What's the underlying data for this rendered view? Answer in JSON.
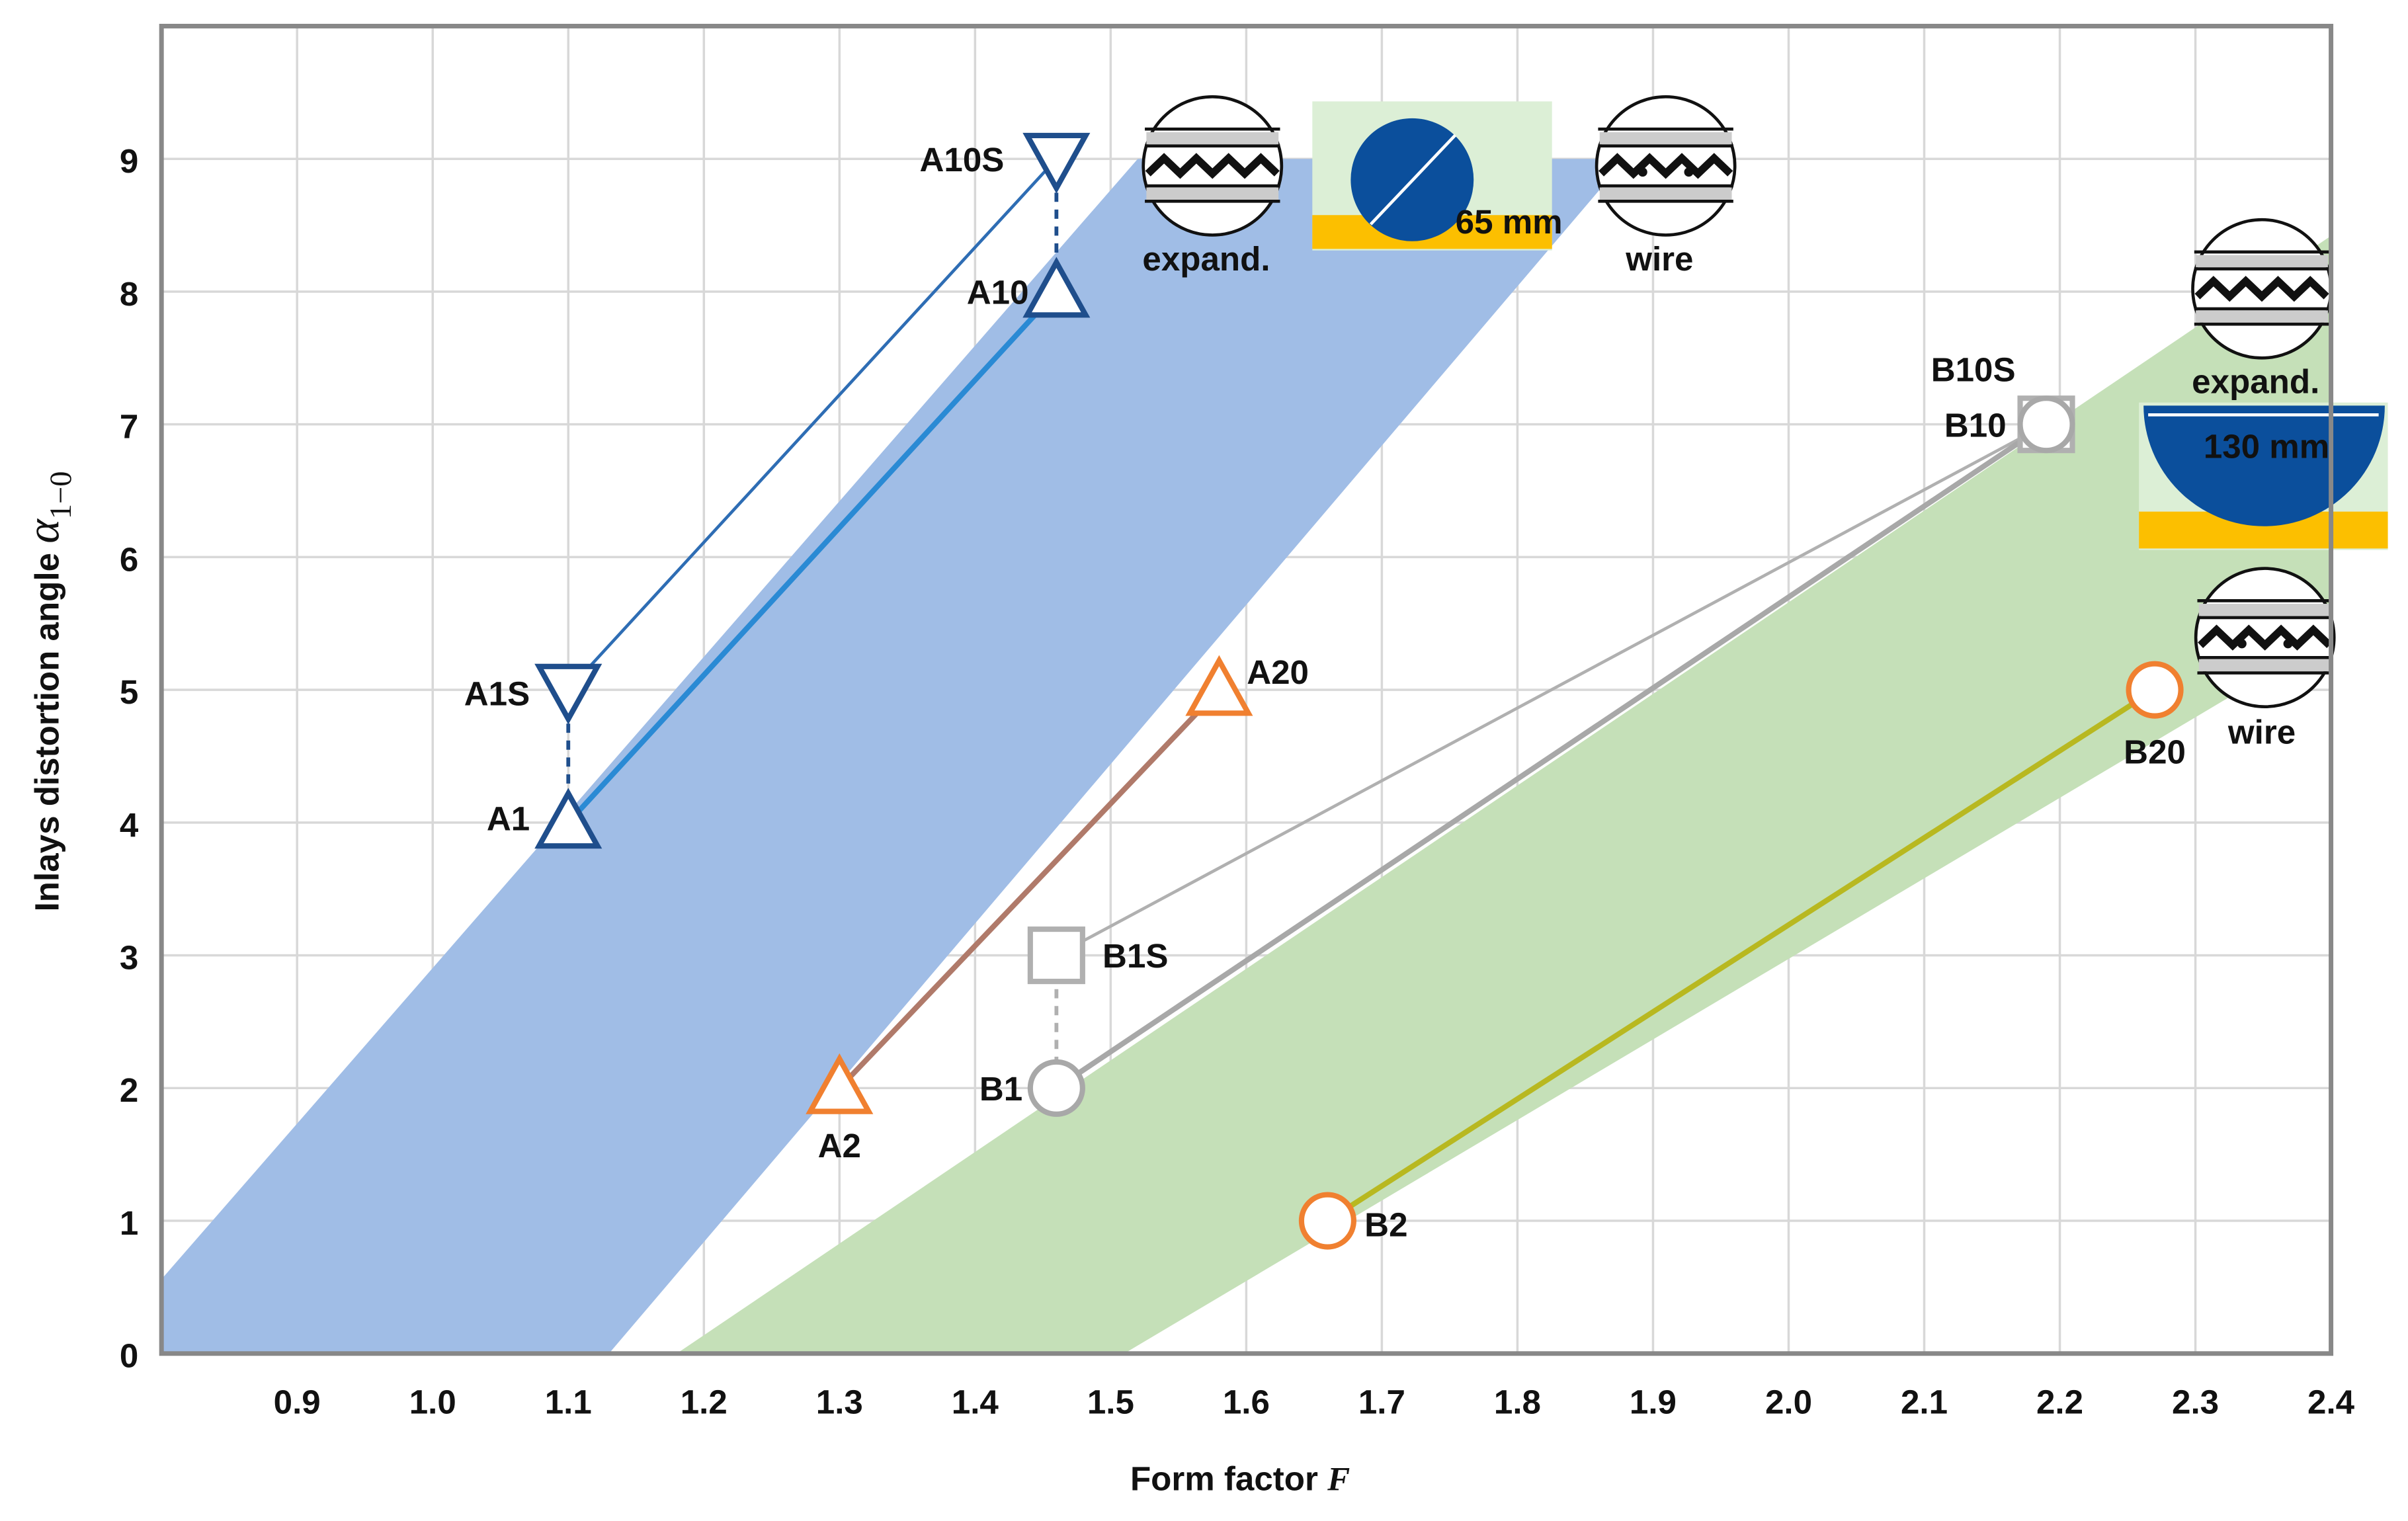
{
  "chart_data": {
    "type": "scatter",
    "xlabel": {
      "text": "Form factor",
      "symbol": "F"
    },
    "ylabel": {
      "text": "Inlays distortion angle",
      "symbol": "α",
      "subscript": "1−0"
    },
    "xlim": [
      0.8,
      2.4
    ],
    "ylim": [
      0,
      10
    ],
    "xticks": [
      0.9,
      {
        "value": 1,
        "label": "1.0"
      },
      1.1,
      1.2,
      1.3,
      1.4,
      1.5,
      1.6,
      1.7,
      1.8,
      1.9,
      {
        "value": 2,
        "label": "2.0"
      },
      2.1,
      2.2,
      2.3,
      2.4
    ],
    "yticks": [
      0,
      1,
      2,
      3,
      4,
      5,
      6,
      7,
      8,
      9
    ],
    "grid": true,
    "bands": [
      {
        "color": "#a0bde6",
        "x": [
          0.8,
          0.8,
          1.52,
          1.88,
          1.13
        ],
        "y": [
          0,
          0.56,
          9,
          9,
          0
        ]
      },
      {
        "color": "#c5e0b8",
        "x": [
          1.18,
          2.4,
          2.4,
          1.51
        ],
        "y": [
          0,
          8.42,
          5.4,
          0
        ]
      }
    ],
    "lines": [
      {
        "color": "#2e6db4",
        "x": [
          1.1,
          1.46
        ],
        "y": [
          5,
          9
        ]
      },
      {
        "color": "#2a8ad4",
        "x": [
          1.1,
          1.46
        ],
        "y": [
          4,
          8
        ]
      },
      {
        "color": "#b07a6a",
        "x": [
          1.3,
          1.58
        ],
        "y": [
          2,
          5
        ]
      },
      {
        "color": "#b0b0b0",
        "x": [
          1.46,
          2.19
        ],
        "y": [
          3,
          7
        ]
      },
      {
        "color": "#a8a8a8",
        "x": [
          1.46,
          2.19
        ],
        "y": [
          2,
          7
        ]
      },
      {
        "color": "#b8b820",
        "x": [
          1.66,
          2.27
        ],
        "y": [
          1,
          5
        ]
      },
      {
        "color": "#1f4e8c",
        "dash": true,
        "x": [
          1.1,
          1.1
        ],
        "y": [
          5,
          4
        ]
      },
      {
        "color": "#1f4e8c",
        "dash": true,
        "x": [
          1.46,
          1.46
        ],
        "y": [
          9,
          8
        ]
      },
      {
        "color": "#b0b0b0",
        "dash": true,
        "x": [
          1.46,
          1.46
        ],
        "y": [
          3,
          2
        ]
      }
    ],
    "points": [
      {
        "name": "A1S",
        "x": 1.1,
        "y": 5,
        "marker": "triangle-down",
        "color": "#1f4e8c"
      },
      {
        "name": "A1",
        "x": 1.1,
        "y": 4,
        "marker": "triangle-up",
        "color": "#1f4e8c"
      },
      {
        "name": "A10S",
        "x": 1.46,
        "y": 9,
        "marker": "triangle-down",
        "color": "#1f4e8c"
      },
      {
        "name": "A10",
        "x": 1.46,
        "y": 8,
        "marker": "triangle-up",
        "color": "#1f4e8c"
      },
      {
        "name": "A2",
        "x": 1.3,
        "y": 2,
        "marker": "triangle-up",
        "color": "#f08030"
      },
      {
        "name": "A20",
        "x": 1.58,
        "y": 5,
        "marker": "triangle-up",
        "color": "#f08030"
      },
      {
        "name": "B1S",
        "x": 1.46,
        "y": 3,
        "marker": "square",
        "color": "#b0b0b0"
      },
      {
        "name": "B1",
        "x": 1.46,
        "y": 2,
        "marker": "circle",
        "color": "#a8a8a8"
      },
      {
        "name": "B10S",
        "x": 2.19,
        "y": 7,
        "marker": "square",
        "color": "#b0b0b0"
      },
      {
        "name": "B10",
        "x": 2.19,
        "y": 7,
        "marker": "circle",
        "color": "#a8a8a8"
      },
      {
        "name": "B2",
        "x": 1.66,
        "y": 1,
        "marker": "circle",
        "color": "#f08030"
      },
      {
        "name": "B20",
        "x": 2.27,
        "y": 5,
        "marker": "circle",
        "color": "#f08030"
      }
    ],
    "annotations": [
      "expand.",
      "wire",
      "65 mm",
      "expand.",
      "wire",
      "130 mm"
    ]
  }
}
